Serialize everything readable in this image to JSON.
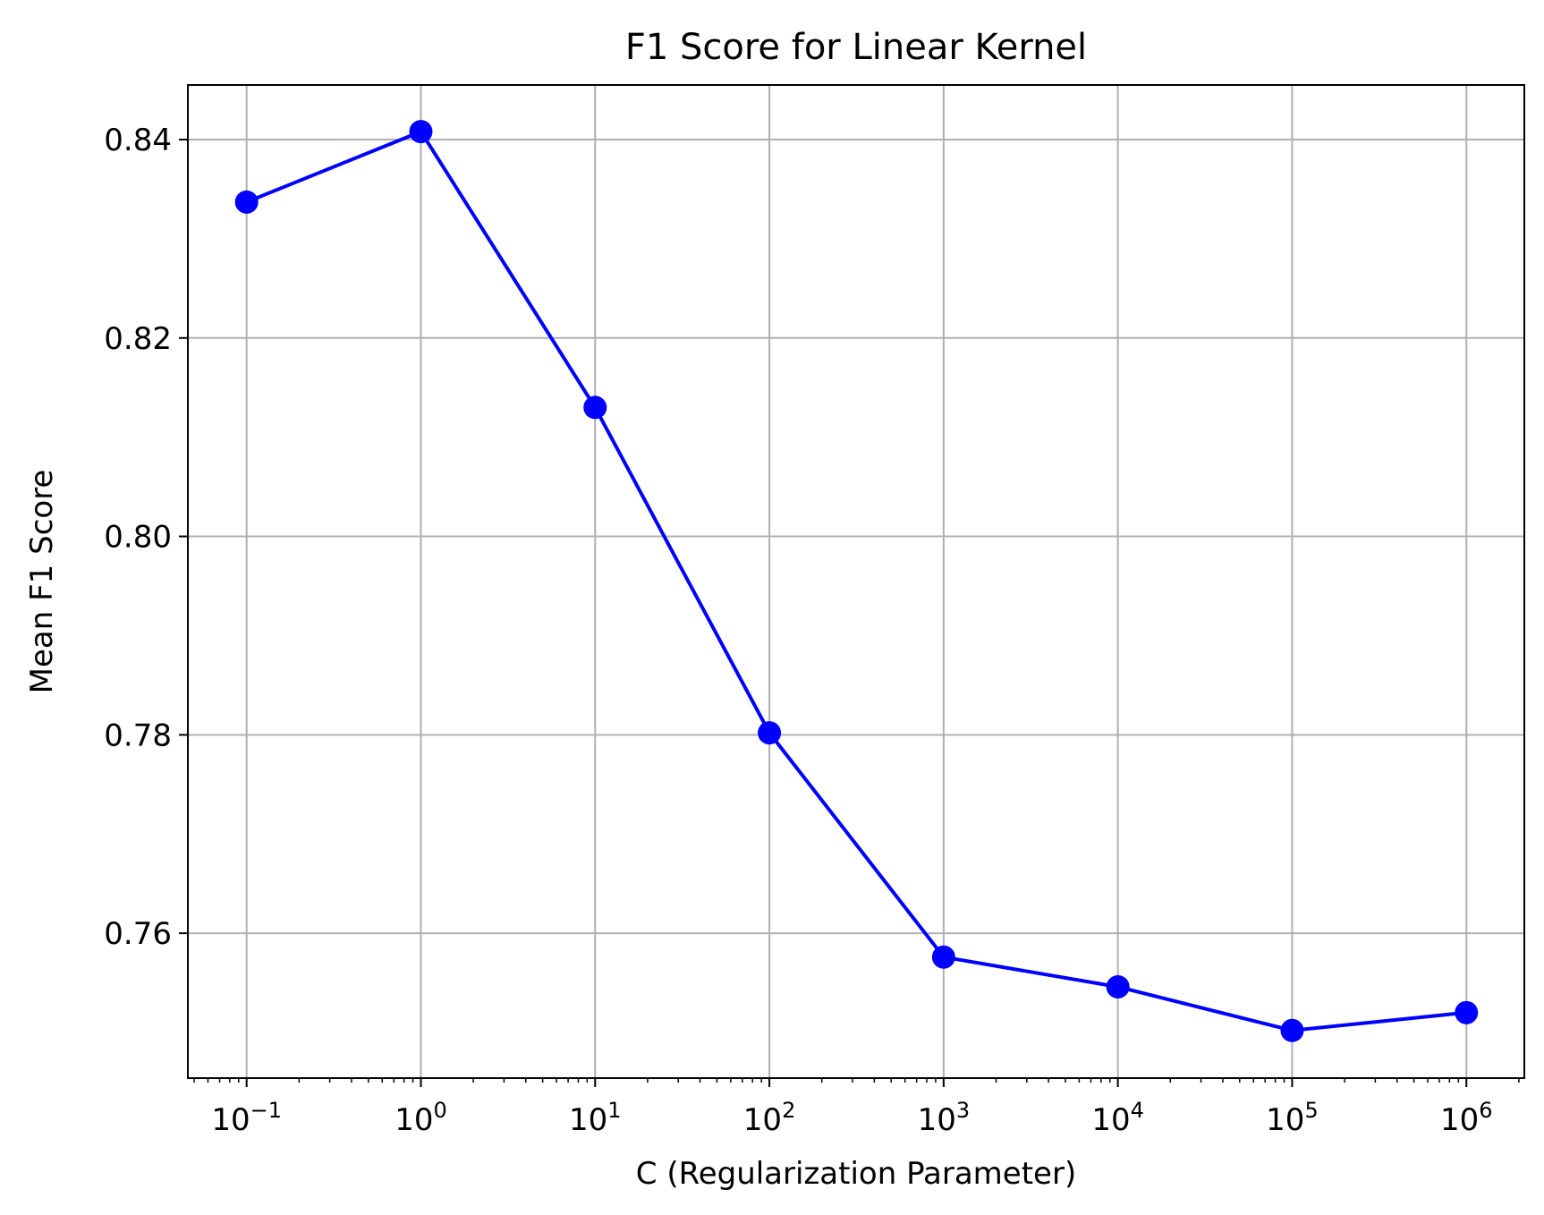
{
  "chart_data": {
    "type": "line",
    "title": "F1 Score for Linear Kernel",
    "xlabel": "C (Regularization Parameter)",
    "ylabel": "Mean F1 Score",
    "x_scale": "log",
    "x_ticks": [
      0.1,
      1,
      10,
      100,
      1000,
      10000,
      100000,
      1000000
    ],
    "x_tick_labels": [
      {
        "base": "10",
        "exp": "−1"
      },
      {
        "base": "10",
        "exp": "0"
      },
      {
        "base": "10",
        "exp": "1"
      },
      {
        "base": "10",
        "exp": "2"
      },
      {
        "base": "10",
        "exp": "3"
      },
      {
        "base": "10",
        "exp": "4"
      },
      {
        "base": "10",
        "exp": "5"
      },
      {
        "base": "10",
        "exp": "6"
      }
    ],
    "y_ticks": [
      "0.76",
      "0.78",
      "0.80",
      "0.82",
      "0.84"
    ],
    "xlim": [
      0.046,
      2150000
    ],
    "ylim": [
      0.7454,
      0.8455
    ],
    "grid": true,
    "legend": "none",
    "series": [
      {
        "color": "#0000ff",
        "marker": "circle",
        "x": [
          0.1,
          1,
          10,
          100,
          1000,
          10000,
          100000,
          1000000
        ],
        "y": [
          0.8337,
          0.8408,
          0.813,
          0.7802,
          0.7576,
          0.7546,
          0.7502,
          0.752
        ]
      }
    ]
  }
}
